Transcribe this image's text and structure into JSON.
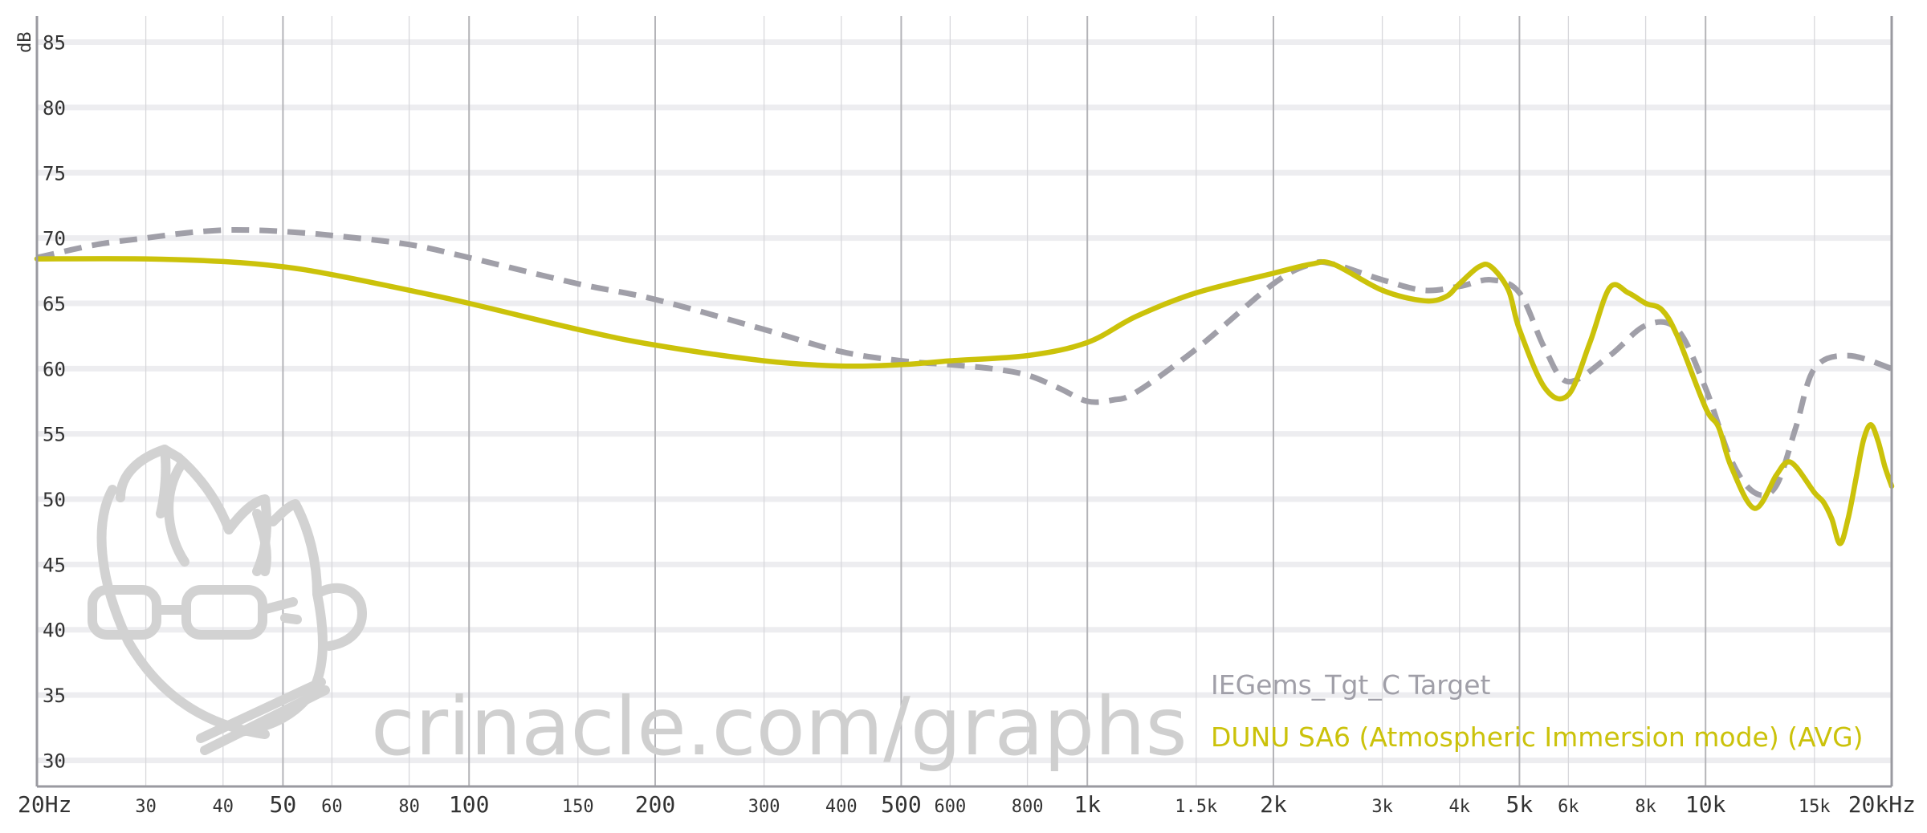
{
  "chart_data": {
    "type": "line",
    "ylabel": "dB",
    "ylim": [
      28,
      87
    ],
    "x_scale": "log",
    "xlim": [
      20,
      20000
    ],
    "y_ticks": [
      85,
      80,
      75,
      70,
      65,
      60,
      55,
      50,
      45,
      40,
      35,
      30
    ],
    "x_ticks": [
      {
        "value": 20,
        "label": "20Hz",
        "major": true
      },
      {
        "value": 30,
        "label": "30",
        "major": false
      },
      {
        "value": 40,
        "label": "40",
        "major": false
      },
      {
        "value": 50,
        "label": "50",
        "major": true
      },
      {
        "value": 60,
        "label": "60",
        "major": false
      },
      {
        "value": 80,
        "label": "80",
        "major": false
      },
      {
        "value": 100,
        "label": "100",
        "major": true
      },
      {
        "value": 150,
        "label": "150",
        "major": false
      },
      {
        "value": 200,
        "label": "200",
        "major": true
      },
      {
        "value": 300,
        "label": "300",
        "major": false
      },
      {
        "value": 400,
        "label": "400",
        "major": false
      },
      {
        "value": 500,
        "label": "500",
        "major": true
      },
      {
        "value": 600,
        "label": "600",
        "major": false
      },
      {
        "value": 800,
        "label": "800",
        "major": false
      },
      {
        "value": 1000,
        "label": "1k",
        "major": true
      },
      {
        "value": 1500,
        "label": "1.5k",
        "major": false
      },
      {
        "value": 2000,
        "label": "2k",
        "major": true
      },
      {
        "value": 3000,
        "label": "3k",
        "major": false
      },
      {
        "value": 4000,
        "label": "4k",
        "major": false
      },
      {
        "value": 5000,
        "label": "5k",
        "major": true
      },
      {
        "value": 6000,
        "label": "6k",
        "major": false
      },
      {
        "value": 8000,
        "label": "8k",
        "major": false
      },
      {
        "value": 10000,
        "label": "10k",
        "major": true
      },
      {
        "value": 15000,
        "label": "15k",
        "major": false
      },
      {
        "value": 20000,
        "label": "20kHz",
        "major": true
      }
    ],
    "grid": true,
    "legend_position": "bottom-right",
    "series": [
      {
        "name": "IEGems_Tgt_C Target",
        "color": "#a09fa8",
        "dashed": true,
        "x": [
          20,
          25,
          30,
          35,
          40,
          45,
          50,
          60,
          80,
          100,
          150,
          200,
          300,
          400,
          500,
          600,
          700,
          800,
          900,
          1000,
          1100,
          1200,
          1500,
          2000,
          2300,
          2500,
          3000,
          3500,
          4000,
          4500,
          5000,
          5500,
          6000,
          7000,
          8000,
          9000,
          10000,
          11000,
          12000,
          13000,
          14000,
          15000,
          17000,
          20000
        ],
        "y": [
          68.5,
          69.5,
          70.0,
          70.4,
          70.6,
          70.6,
          70.5,
          70.2,
          69.5,
          68.5,
          66.5,
          65.3,
          63.0,
          61.3,
          60.6,
          60.3,
          60.0,
          59.5,
          58.5,
          57.5,
          57.6,
          58.2,
          61.5,
          66.5,
          68.0,
          68.0,
          66.8,
          66.0,
          66.3,
          66.8,
          65.8,
          61.5,
          59.0,
          61.0,
          63.3,
          63.0,
          58.5,
          53.0,
          50.5,
          51.0,
          55.5,
          60.0,
          61.0,
          60.0
        ]
      },
      {
        "name": "DUNU SA6 (Atmospheric Immersion mode) (AVG)",
        "color": "#cbc20a",
        "dashed": false,
        "x": [
          20,
          30,
          40,
          50,
          60,
          80,
          100,
          150,
          200,
          300,
          400,
          500,
          600,
          800,
          1000,
          1200,
          1500,
          2000,
          2300,
          2500,
          3000,
          3500,
          3800,
          4000,
          4300,
          4500,
          4800,
          5000,
          5500,
          6000,
          6500,
          7000,
          7500,
          8000,
          8500,
          9000,
          10000,
          10500,
          11000,
          12000,
          13000,
          13500,
          14000,
          15000,
          15500,
          16000,
          16500,
          17000,
          17500,
          18000,
          18500,
          19000,
          19500,
          20000
        ],
        "y": [
          68.4,
          68.4,
          68.2,
          67.8,
          67.2,
          66.0,
          65.0,
          63.0,
          61.8,
          60.6,
          60.2,
          60.3,
          60.6,
          61.0,
          62.0,
          64.0,
          65.8,
          67.3,
          68.0,
          68.0,
          66.0,
          65.2,
          65.5,
          66.5,
          67.8,
          67.8,
          66.0,
          63.0,
          58.5,
          58.0,
          62.0,
          66.2,
          65.8,
          65.0,
          64.5,
          62.5,
          57.0,
          55.5,
          52.5,
          49.3,
          51.8,
          52.8,
          52.5,
          50.5,
          49.8,
          48.5,
          46.6,
          48.5,
          51.5,
          54.5,
          55.7,
          54.5,
          52.5,
          51.0
        ]
      }
    ]
  },
  "watermark": "crinacle.com/graphs",
  "legend": {
    "target": "IEGems_Tgt_C Target",
    "iem": "DUNU SA6 (Atmospheric Immersion mode) (AVG)"
  }
}
